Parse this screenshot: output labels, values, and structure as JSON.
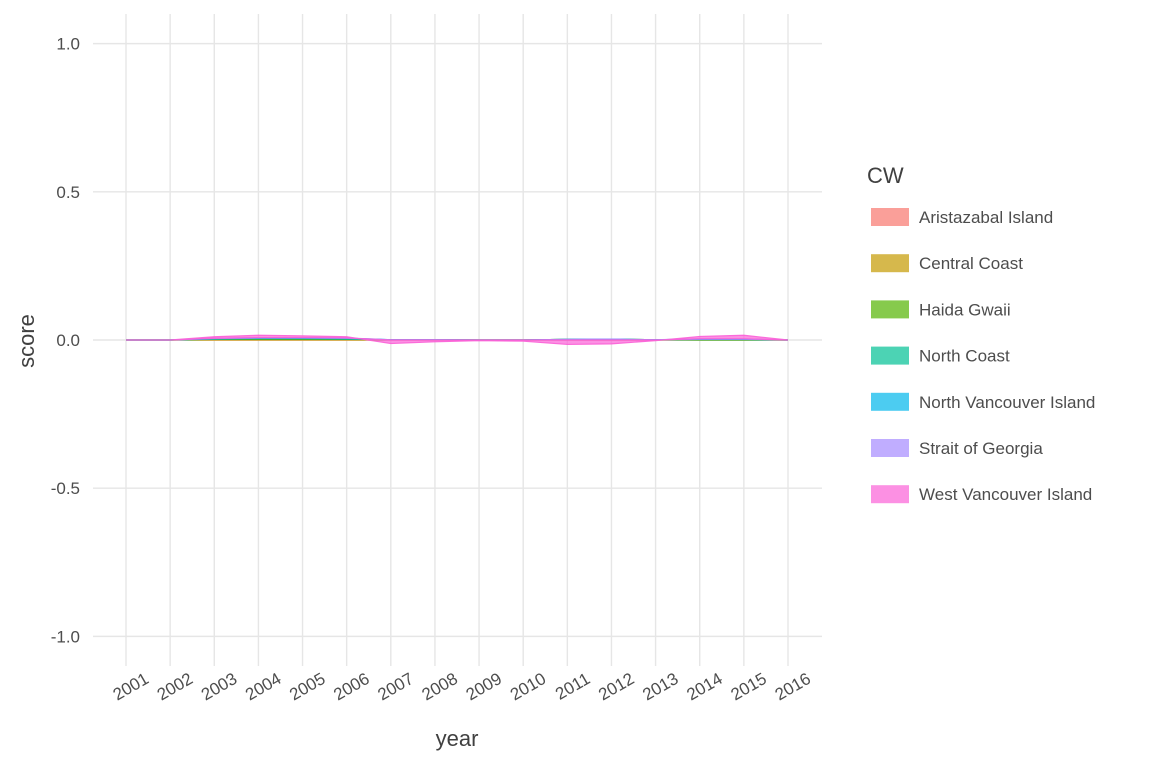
{
  "chart_data": {
    "type": "area",
    "title": "",
    "xlabel": "year",
    "ylabel": "score",
    "ylim": [
      -1.1,
      1.1
    ],
    "yticks": [
      -1.0,
      -0.5,
      0.0,
      0.5,
      1.0
    ],
    "ytick_labels": [
      "-1.0",
      "-0.5",
      "0.0",
      "0.5",
      "1.0"
    ],
    "x": [
      "2001",
      "2002",
      "2003",
      "2004",
      "2005",
      "2006",
      "2007",
      "2008",
      "2009",
      "2010",
      "2011",
      "2012",
      "2013",
      "2014",
      "2015",
      "2016"
    ],
    "grid": true,
    "legend_title": "CW",
    "legend_position": "right",
    "series": [
      {
        "name": "Aristazabal Island",
        "color": "#F8766D",
        "values": [
          0,
          0,
          0,
          0,
          0,
          0,
          0,
          0,
          0,
          0,
          0,
          0,
          0,
          0,
          0,
          0
        ]
      },
      {
        "name": "Central Coast",
        "color": "#C49A00",
        "values": [
          0,
          0,
          0.002,
          0.002,
          0.002,
          0.002,
          0.001,
          0.001,
          0,
          0,
          0.002,
          0.003,
          0.001,
          0,
          0,
          0
        ]
      },
      {
        "name": "Haida Gwaii",
        "color": "#53B400",
        "values": [
          0,
          0,
          0.001,
          0.002,
          0.002,
          0.001,
          0,
          0,
          0,
          0,
          0,
          0,
          0,
          0.001,
          0.001,
          0
        ]
      },
      {
        "name": "North Coast",
        "color": "#00C094",
        "values": [
          0,
          0,
          0.001,
          0.002,
          0.002,
          0.002,
          0,
          0,
          0,
          0,
          0,
          0,
          0,
          0.001,
          0.001,
          0
        ]
      },
      {
        "name": "North Vancouver Island",
        "color": "#00B6EB",
        "values": [
          0,
          0,
          0.001,
          0.001,
          0.001,
          0.001,
          0,
          0,
          0,
          0,
          0,
          0,
          0,
          0.001,
          0.001,
          0
        ]
      },
      {
        "name": "Strait of Georgia",
        "color": "#A58AFF",
        "values": [
          0,
          0,
          0.001,
          0.001,
          0.001,
          0.001,
          0,
          0,
          0,
          0,
          0,
          0,
          0,
          0.001,
          0.001,
          0
        ]
      },
      {
        "name": "West Vancouver Island",
        "color": "#FB61D7",
        "values": [
          0,
          0,
          0.005,
          0.008,
          0.006,
          0.004,
          -0.012,
          -0.006,
          -0.002,
          -0.004,
          -0.015,
          -0.013,
          -0.002,
          0.008,
          0.012,
          0
        ]
      }
    ]
  }
}
